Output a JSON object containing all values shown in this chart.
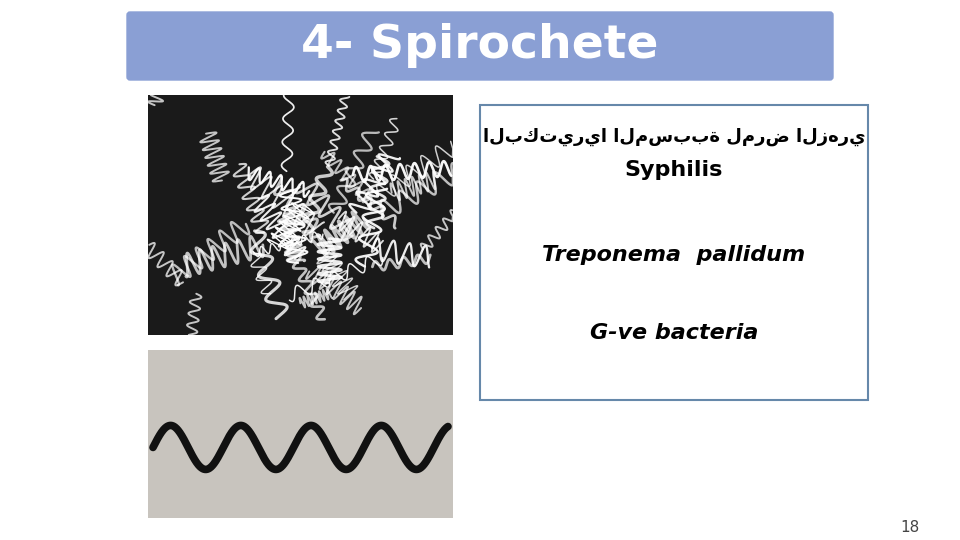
{
  "title": "4- Spirochete",
  "title_bg_color": "#8a9fd4",
  "title_text_color": "#ffffff",
  "title_fontsize": 34,
  "arabic_text": "البكتيريا المسببة لمرض الزهري",
  "syphilis_text": "Syphilis",
  "treponema_text": "Treponema  pallidum",
  "gve_text": "G-ve bacteria",
  "page_number": "18",
  "box_edge_color": "#6688aa",
  "background_color": "#ffffff",
  "text_color": "#000000",
  "top_img_bg": "#1a1a1a",
  "bot_img_bg": "#c8c4be"
}
